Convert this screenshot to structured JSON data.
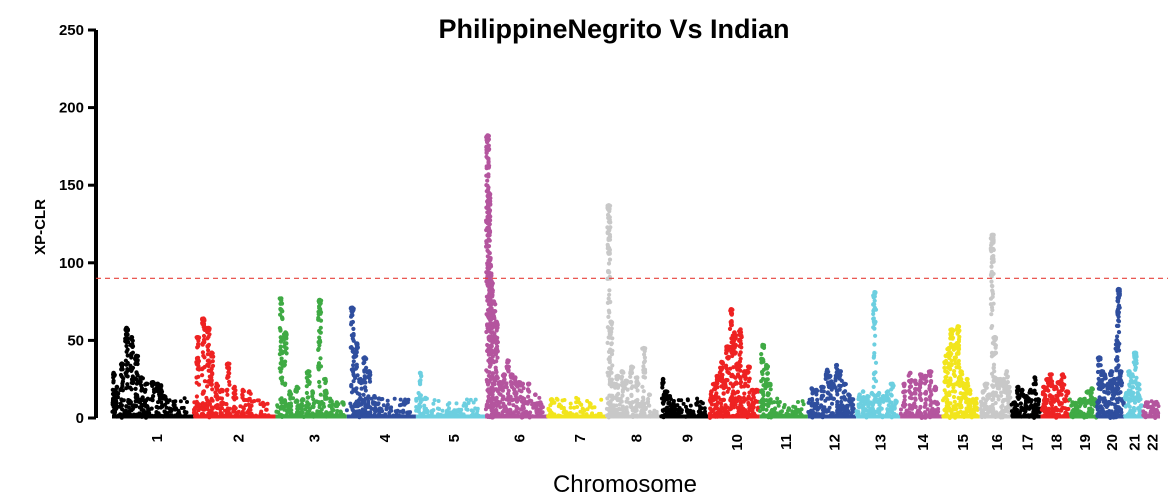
{
  "chart_data": {
    "type": "scatter",
    "title": "PhilippineNegrito Vs Indian",
    "xlabel": "Chromosome",
    "ylabel": "XP-CLR",
    "ylim": [
      0,
      250
    ],
    "yticks": [
      0,
      50,
      100,
      150,
      200,
      250
    ],
    "threshold": {
      "y": 90,
      "color": "#e8403a",
      "style": "dashed"
    },
    "grid": false,
    "legend": "none",
    "chromosomes": [
      {
        "label": "1",
        "color": "#000000",
        "base": 1,
        "peaks": [
          [
            0.02,
            29
          ],
          [
            0.06,
            20
          ],
          [
            0.12,
            35
          ],
          [
            0.18,
            58
          ],
          [
            0.24,
            52
          ],
          [
            0.3,
            40
          ],
          [
            0.36,
            26
          ],
          [
            0.42,
            22
          ],
          [
            0.5,
            23
          ],
          [
            0.56,
            22
          ],
          [
            0.6,
            21
          ],
          [
            0.64,
            14
          ]
        ]
      },
      {
        "label": "2",
        "color": "#ee2222",
        "base": 1,
        "peaks": [
          [
            0.05,
            52
          ],
          [
            0.12,
            64
          ],
          [
            0.18,
            58
          ],
          [
            0.22,
            42
          ],
          [
            0.28,
            22
          ],
          [
            0.34,
            18
          ],
          [
            0.42,
            35
          ],
          [
            0.5,
            20
          ],
          [
            0.6,
            18
          ],
          [
            0.68,
            17
          ]
        ]
      },
      {
        "label": "3",
        "color": "#3faa44",
        "base": 1,
        "peaks": [
          [
            0.08,
            77
          ],
          [
            0.14,
            55
          ],
          [
            0.2,
            17
          ],
          [
            0.3,
            20
          ],
          [
            0.38,
            12
          ],
          [
            0.46,
            30
          ],
          [
            0.52,
            17
          ],
          [
            0.62,
            76
          ],
          [
            0.7,
            25
          ],
          [
            0.78,
            11
          ],
          [
            0.86,
            10
          ],
          [
            0.94,
            10
          ]
        ]
      },
      {
        "label": "4",
        "color": "#2f4e9e",
        "base": 1,
        "peaks": [
          [
            0.08,
            71
          ],
          [
            0.14,
            48
          ],
          [
            0.2,
            25
          ],
          [
            0.26,
            39
          ],
          [
            0.32,
            30
          ],
          [
            0.4,
            14
          ],
          [
            0.48,
            6
          ]
        ]
      },
      {
        "label": "5",
        "color": "#6ccfe0",
        "base": 1,
        "peaks": [
          [
            0.06,
            29
          ]
        ]
      },
      {
        "label": "6",
        "color": "#b4559e",
        "base": 1,
        "peaks": [
          [
            0.04,
            182
          ],
          [
            0.06,
            145
          ],
          [
            0.08,
            103
          ],
          [
            0.1,
            88
          ],
          [
            0.14,
            75
          ],
          [
            0.18,
            62
          ],
          [
            0.24,
            23
          ],
          [
            0.3,
            28
          ],
          [
            0.36,
            37
          ],
          [
            0.42,
            28
          ],
          [
            0.48,
            26
          ],
          [
            0.54,
            23
          ],
          [
            0.6,
            22
          ],
          [
            0.7,
            22
          ],
          [
            0.8,
            15
          ],
          [
            0.88,
            10
          ]
        ]
      },
      {
        "label": "7",
        "color": "#f2e51c",
        "base": 1,
        "peaks": [
          [
            0.06,
            12
          ]
        ]
      },
      {
        "label": "8",
        "color": "#c8c8c8",
        "base": 1,
        "peaks": [
          [
            0.04,
            137
          ],
          [
            0.08,
            62
          ],
          [
            0.14,
            22
          ],
          [
            0.2,
            27
          ],
          [
            0.28,
            30
          ],
          [
            0.36,
            24
          ],
          [
            0.46,
            33
          ],
          [
            0.56,
            26
          ],
          [
            0.68,
            45
          ],
          [
            0.78,
            15
          ]
        ]
      },
      {
        "label": "9",
        "color": "#000000",
        "base": 1,
        "peaks": [
          [
            0.04,
            25
          ],
          [
            0.1,
            17
          ],
          [
            0.18,
            14
          ],
          [
            0.28,
            8
          ],
          [
            0.4,
            5
          ],
          [
            0.54,
            5
          ],
          [
            0.66,
            4
          ]
        ]
      },
      {
        "label": "10",
        "color": "#ee2222",
        "base": 1,
        "peaks": [
          [
            0.04,
            17
          ],
          [
            0.1,
            22
          ],
          [
            0.16,
            27
          ],
          [
            0.24,
            36
          ],
          [
            0.3,
            24
          ],
          [
            0.36,
            46
          ],
          [
            0.44,
            70
          ],
          [
            0.5,
            55
          ],
          [
            0.56,
            35
          ],
          [
            0.62,
            57
          ],
          [
            0.7,
            30
          ],
          [
            0.78,
            33
          ],
          [
            0.86,
            18
          ],
          [
            0.94,
            18
          ]
        ]
      },
      {
        "label": "11",
        "color": "#3faa44",
        "base": 1,
        "peaks": [
          [
            0.06,
            47
          ],
          [
            0.14,
            34
          ],
          [
            0.2,
            22
          ],
          [
            0.26,
            5
          ]
        ]
      },
      {
        "label": "12",
        "color": "#2f4e9e",
        "base": 1,
        "peaks": [
          [
            0.08,
            19
          ],
          [
            0.18,
            18
          ],
          [
            0.3,
            20
          ],
          [
            0.4,
            31
          ],
          [
            0.46,
            27
          ],
          [
            0.52,
            22
          ],
          [
            0.6,
            34
          ],
          [
            0.68,
            30
          ],
          [
            0.76,
            22
          ],
          [
            0.84,
            15
          ],
          [
            0.92,
            12
          ]
        ]
      },
      {
        "label": "13",
        "color": "#6ccfe0",
        "base": 1,
        "peaks": [
          [
            0.08,
            15
          ],
          [
            0.16,
            17
          ],
          [
            0.26,
            14
          ],
          [
            0.36,
            16
          ],
          [
            0.42,
            81
          ],
          [
            0.52,
            16
          ],
          [
            0.62,
            14
          ],
          [
            0.72,
            17
          ],
          [
            0.82,
            22
          ],
          [
            0.9,
            11
          ]
        ]
      },
      {
        "label": "14",
        "color": "#b4559e",
        "base": 1,
        "peaks": [
          [
            0.1,
            22
          ],
          [
            0.24,
            29
          ],
          [
            0.36,
            24
          ],
          [
            0.48,
            28
          ],
          [
            0.6,
            27
          ],
          [
            0.72,
            30
          ],
          [
            0.84,
            20
          ]
        ]
      },
      {
        "label": "15",
        "color": "#f2e51c",
        "base": 1,
        "peaks": [
          [
            0.1,
            40
          ],
          [
            0.18,
            45
          ],
          [
            0.26,
            57
          ],
          [
            0.34,
            47
          ],
          [
            0.42,
            59
          ],
          [
            0.5,
            30
          ],
          [
            0.58,
            22
          ],
          [
            0.66,
            25
          ],
          [
            0.74,
            18
          ],
          [
            0.82,
            12
          ],
          [
            0.9,
            10
          ]
        ]
      },
      {
        "label": "16",
        "color": "#c8c8c8",
        "base": 1,
        "peaks": [
          [
            0.1,
            17
          ],
          [
            0.2,
            22
          ],
          [
            0.3,
            15
          ],
          [
            0.4,
            118
          ],
          [
            0.48,
            52
          ],
          [
            0.56,
            25
          ],
          [
            0.66,
            25
          ],
          [
            0.76,
            25
          ],
          [
            0.86,
            30
          ],
          [
            0.94,
            20
          ]
        ]
      },
      {
        "label": "17",
        "color": "#000000",
        "base": 1,
        "peaks": [
          [
            0.12,
            10
          ],
          [
            0.24,
            20
          ],
          [
            0.38,
            18
          ],
          [
            0.52,
            14
          ],
          [
            0.66,
            18
          ],
          [
            0.8,
            26
          ],
          [
            0.92,
            12
          ]
        ]
      },
      {
        "label": "18",
        "color": "#ee2222",
        "base": 1,
        "peaks": [
          [
            0.12,
            20
          ],
          [
            0.24,
            25
          ],
          [
            0.36,
            28
          ],
          [
            0.5,
            20
          ],
          [
            0.62,
            23
          ],
          [
            0.76,
            28
          ],
          [
            0.9,
            17
          ]
        ]
      },
      {
        "label": "19",
        "color": "#3faa44",
        "base": 1,
        "peaks": [
          [
            0.1,
            10
          ],
          [
            0.24,
            8
          ],
          [
            0.38,
            12
          ],
          [
            0.52,
            12
          ],
          [
            0.66,
            17
          ],
          [
            0.8,
            19
          ],
          [
            0.92,
            12
          ]
        ]
      },
      {
        "label": "20",
        "color": "#2f4e9e",
        "base": 1,
        "peaks": [
          [
            0.08,
            39
          ],
          [
            0.18,
            30
          ],
          [
            0.28,
            28
          ],
          [
            0.4,
            22
          ],
          [
            0.52,
            30
          ],
          [
            0.62,
            25
          ],
          [
            0.72,
            50
          ],
          [
            0.78,
            83
          ],
          [
            0.86,
            30
          ],
          [
            0.94,
            12
          ]
        ]
      },
      {
        "label": "21",
        "color": "#6ccfe0",
        "base": 1,
        "peaks": [
          [
            0.1,
            16
          ],
          [
            0.26,
            30
          ],
          [
            0.42,
            28
          ],
          [
            0.58,
            42
          ],
          [
            0.74,
            22
          ],
          [
            0.9,
            8
          ]
        ]
      },
      {
        "label": "22",
        "color": "#b4559e",
        "base": 1,
        "peaks": [
          [
            0.2,
            10
          ],
          [
            0.5,
            7
          ],
          [
            0.8,
            5
          ]
        ]
      }
    ]
  }
}
